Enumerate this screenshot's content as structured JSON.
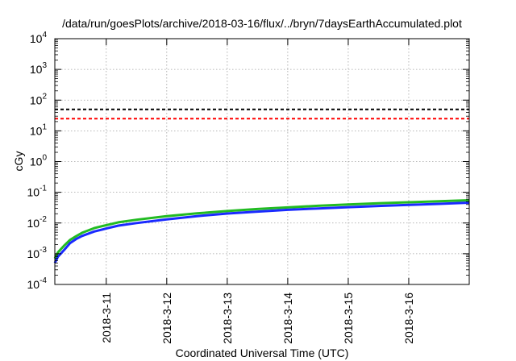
{
  "chart_data": {
    "type": "line",
    "title": "/data/run/goesPlots/archive/2018-03-16/flux/../bryn/7daysEarthAccumulated.plot",
    "xlabel": "Coordinated Universal Time (UTC)",
    "ylabel": "cGy",
    "yscale": "log",
    "ylim": [
      0.0001,
      10000
    ],
    "xlim": [
      0.15,
      7.0
    ],
    "grid": true,
    "y_ticks": [
      {
        "value": 0.0001,
        "base": "10",
        "exp": "-4"
      },
      {
        "value": 0.001,
        "base": "10",
        "exp": "-3"
      },
      {
        "value": 0.01,
        "base": "10",
        "exp": "-2"
      },
      {
        "value": 0.1,
        "base": "10",
        "exp": "-1"
      },
      {
        "value": 1,
        "base": "10",
        "exp": "0"
      },
      {
        "value": 10,
        "base": "10",
        "exp": "1"
      },
      {
        "value": 100,
        "base": "10",
        "exp": "2"
      },
      {
        "value": 1000,
        "base": "10",
        "exp": "3"
      },
      {
        "value": 10000,
        "base": "10",
        "exp": "4"
      }
    ],
    "x_ticks": [
      {
        "value": 1,
        "label": "2018-3-11"
      },
      {
        "value": 2,
        "label": "2018-3-12"
      },
      {
        "value": 3,
        "label": "2018-3-13"
      },
      {
        "value": 4,
        "label": "2018-3-14"
      },
      {
        "value": 5,
        "label": "2018-3-15"
      },
      {
        "value": 6,
        "label": "2018-3-16"
      }
    ],
    "thresholds": [
      {
        "value": 50,
        "color": "#000000"
      },
      {
        "value": 25,
        "color": "#ff0000"
      }
    ],
    "series": [
      {
        "color": "#22bb22",
        "x": [
          0.15,
          0.2,
          0.3,
          0.4,
          0.5,
          0.6,
          0.8,
          1.0,
          1.2,
          1.5,
          2.0,
          2.5,
          3.0,
          3.5,
          4.0,
          4.5,
          5.0,
          5.5,
          6.0,
          6.5,
          7.0
        ],
        "y": [
          0.0007,
          0.0011,
          0.0018,
          0.0028,
          0.0037,
          0.0048,
          0.0068,
          0.0085,
          0.0105,
          0.0128,
          0.0168,
          0.0206,
          0.0245,
          0.0285,
          0.0322,
          0.0363,
          0.04,
          0.0438,
          0.0475,
          0.051,
          0.055
        ]
      },
      {
        "color": "#1a2aff",
        "x": [
          0.15,
          0.2,
          0.3,
          0.4,
          0.5,
          0.6,
          0.8,
          1.0,
          1.2,
          1.5,
          2.0,
          2.5,
          3.0,
          3.5,
          4.0,
          4.5,
          5.0,
          5.5,
          6.0,
          6.5,
          7.0
        ],
        "y": [
          0.0005,
          0.0008,
          0.0013,
          0.0022,
          0.003,
          0.0038,
          0.0053,
          0.0066,
          0.0082,
          0.01,
          0.0131,
          0.0168,
          0.0203,
          0.0235,
          0.0268,
          0.0298,
          0.0328,
          0.0358,
          0.0388,
          0.042,
          0.046
        ]
      }
    ]
  }
}
